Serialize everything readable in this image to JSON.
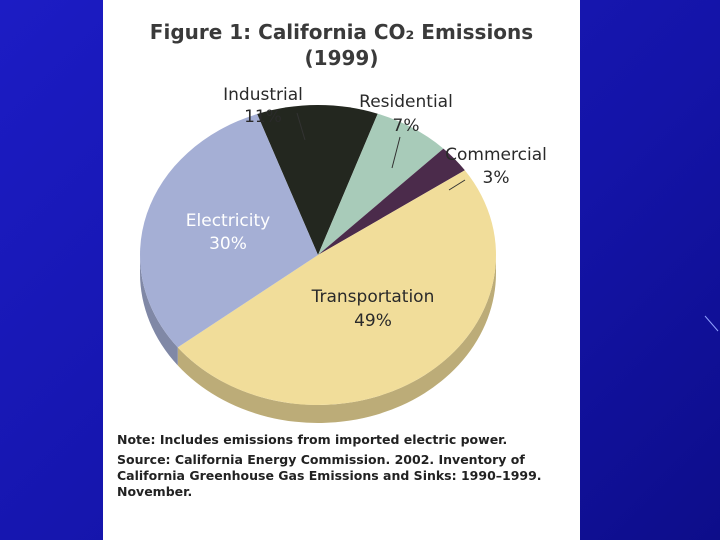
{
  "chart_data": {
    "type": "pie",
    "title": "Figure 1: California CO₂ Emissions",
    "subtitle": "(1999)",
    "categories": [
      "Industrial",
      "Residential",
      "Commercial",
      "Transportation",
      "Electricity"
    ],
    "values": [
      11,
      7,
      3,
      49,
      30
    ],
    "value_labels": [
      "11%",
      "7%",
      "3%",
      "49%",
      "30%"
    ],
    "colors": [
      "#23271f",
      "#a8cbb9",
      "#4b2b4b",
      "#f1dd9a",
      "#a5afd5"
    ],
    "note": "Note: Includes emissions from imported electric power.",
    "source": "Source: California Energy Commission. 2002. Inventory of California Greenhouse Gas Emissions and Sinks: 1990–1999. November."
  }
}
